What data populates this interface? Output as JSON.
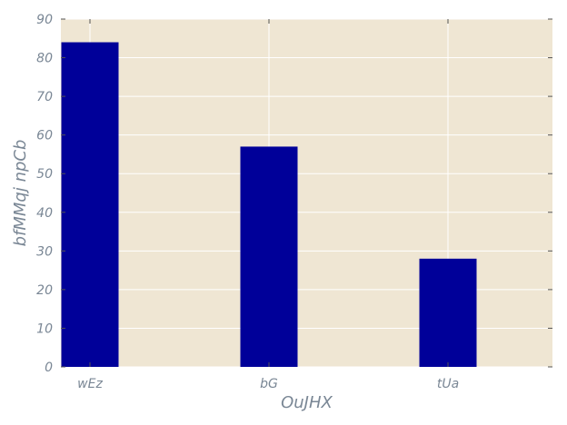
{
  "chart_data": {
    "type": "bar",
    "title": "",
    "xlabel": "OuJHX",
    "ylabel": "bfMMqj npCb",
    "categories": [
      "wEz",
      "bG",
      "tUa"
    ],
    "values": [
      84,
      57,
      28
    ],
    "ylim": [
      0,
      90
    ],
    "yticks": [
      0,
      10,
      20,
      30,
      40,
      50,
      60,
      70,
      80,
      90
    ],
    "grid": true,
    "colors": {
      "bar": "#000099",
      "plot_background": "#efe6d3",
      "grid": "#ffffff",
      "text": "#7a8795",
      "tick": "#555555"
    }
  }
}
